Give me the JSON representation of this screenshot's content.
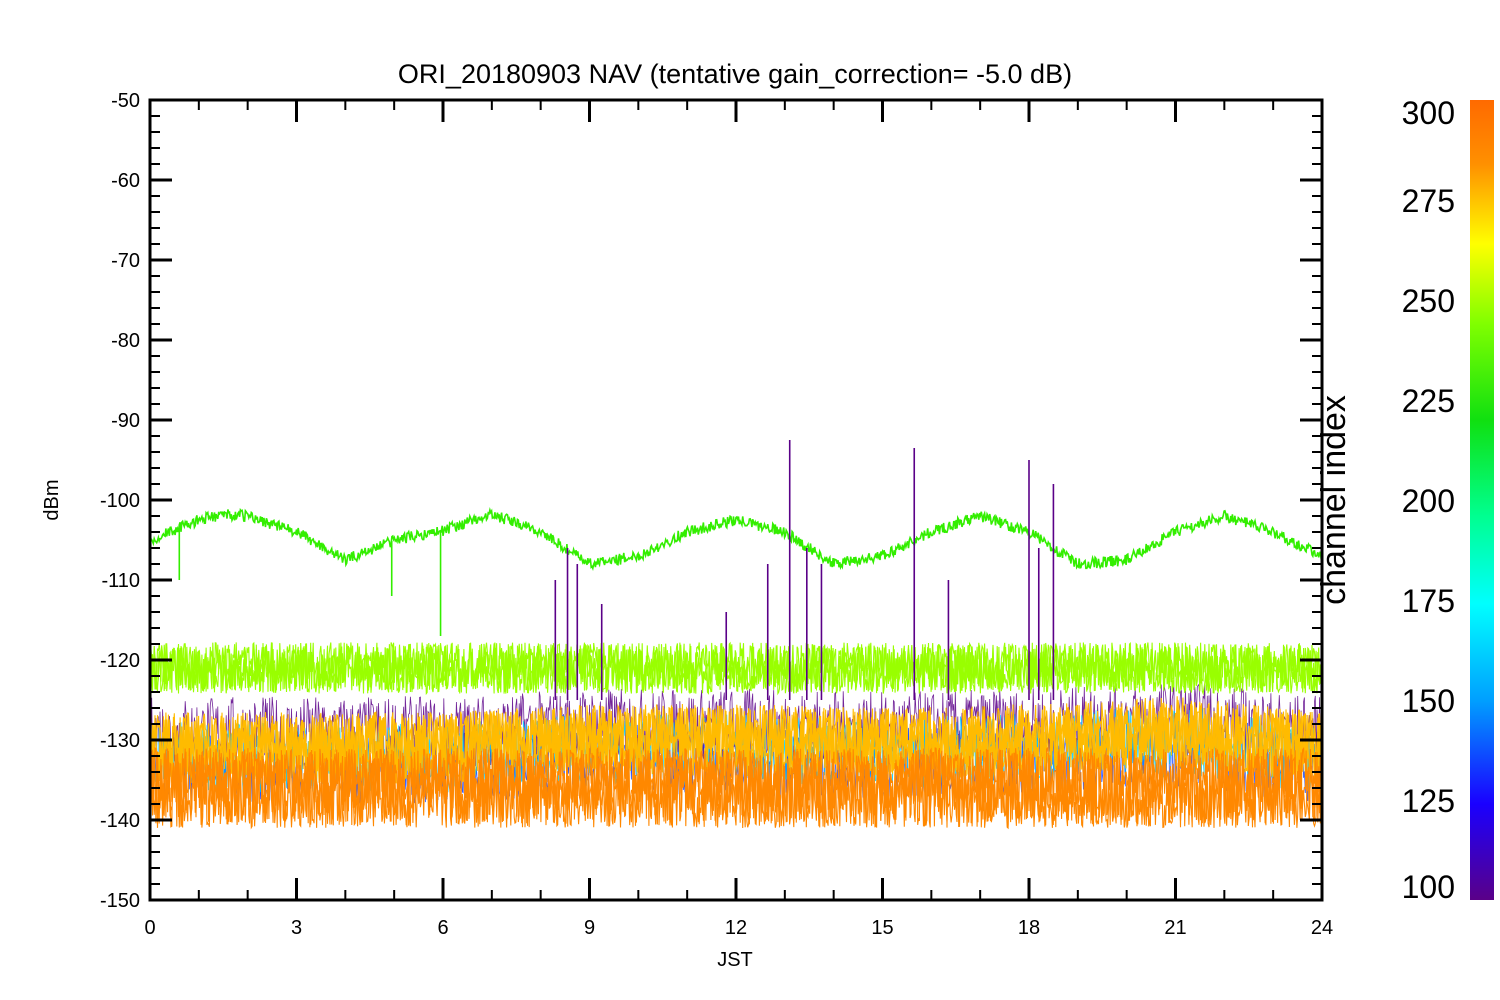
{
  "chart_data": {
    "type": "line",
    "title": "ORI_20180903 NAV (tentative gain_correction= -5.0 dB)",
    "xlabel": "JST",
    "ylabel": "dBm",
    "xlim": [
      0,
      24
    ],
    "ylim": [
      -150,
      -50
    ],
    "x_ticks": [
      "0",
      "3",
      "6",
      "9",
      "12",
      "15",
      "18",
      "21",
      "24"
    ],
    "y_ticks": [
      "-50",
      "-60",
      "-70",
      "-80",
      "-90",
      "-100",
      "-110",
      "-120",
      "-130",
      "-140",
      "-150"
    ],
    "grid": false,
    "colorbar": {
      "title": "channel index",
      "range": [
        100,
        300
      ],
      "ticks": [
        "300",
        "275",
        "250",
        "225",
        "200",
        "175",
        "150",
        "125",
        "100"
      ],
      "colors": [
        "#5a0088",
        "#1a00ff",
        "#00a0ff",
        "#00ffff",
        "#00ff90",
        "#10e010",
        "#80ff00",
        "#ffff00",
        "#ff9000",
        "#ff6a00"
      ]
    },
    "series": [
      {
        "color": "#33ee00",
        "x": [
          0,
          1,
          1.5,
          2,
          3,
          4,
          5,
          6,
          7,
          8,
          9,
          10,
          11,
          12,
          13,
          14,
          15,
          16,
          17,
          18,
          19,
          20,
          21,
          22,
          23,
          24
        ],
        "y": [
          -105,
          -102.5,
          -101.8,
          -102,
          -104,
          -107.5,
          -105,
          -103.8,
          -101.8,
          -104,
          -108,
          -107,
          -104,
          -102.5,
          -104,
          -108,
          -107,
          -104,
          -102,
          -104,
          -108,
          -107.5,
          -104,
          -102,
          -104,
          -107
        ]
      },
      {
        "color": "#99ff00",
        "x": [
          0,
          3,
          6,
          9,
          12,
          15,
          18,
          21,
          24
        ],
        "y": [
          -121,
          -121,
          -121,
          -121,
          -121,
          -121,
          -121,
          -121,
          -121
        ]
      },
      {
        "color": "#ffbb00",
        "x": [
          0,
          3,
          6,
          9,
          12,
          15,
          18,
          21,
          24
        ],
        "y": [
          -131,
          -131,
          -131,
          -130,
          -130,
          -130.5,
          -130,
          -129,
          -131
        ]
      },
      {
        "color": "#ff8800",
        "x": [
          0,
          3,
          6,
          9,
          12,
          15,
          18,
          21,
          24
        ],
        "y": [
          -136,
          -136,
          -136,
          -136,
          -136,
          -136,
          -136,
          -136,
          -136
        ]
      }
    ],
    "spikes": [
      {
        "x": 8.3,
        "y": -110,
        "color": "#5a0088"
      },
      {
        "x": 8.55,
        "y": -106,
        "color": "#5a0088"
      },
      {
        "x": 8.75,
        "y": -108,
        "color": "#5a0088"
      },
      {
        "x": 9.25,
        "y": -113,
        "color": "#5a0088"
      },
      {
        "x": 11.8,
        "y": -114,
        "color": "#5a0088"
      },
      {
        "x": 12.65,
        "y": -108,
        "color": "#5a0088"
      },
      {
        "x": 13.1,
        "y": -92.5,
        "color": "#5a0088"
      },
      {
        "x": 13.45,
        "y": -106,
        "color": "#5a0088"
      },
      {
        "x": 13.75,
        "y": -108,
        "color": "#5a0088"
      },
      {
        "x": 15.65,
        "y": -93.5,
        "color": "#5a0088"
      },
      {
        "x": 16.35,
        "y": -110,
        "color": "#5a0088"
      },
      {
        "x": 18.0,
        "y": -95,
        "color": "#5a0088"
      },
      {
        "x": 18.2,
        "y": -106,
        "color": "#5a0088"
      },
      {
        "x": 18.5,
        "y": -98,
        "color": "#5a0088"
      },
      {
        "x": 0.6,
        "y": -110,
        "color": "#33ee00"
      },
      {
        "x": 4.95,
        "y": -112,
        "color": "#33ee00"
      },
      {
        "x": 5.95,
        "y": -117,
        "color": "#33ee00"
      }
    ]
  }
}
